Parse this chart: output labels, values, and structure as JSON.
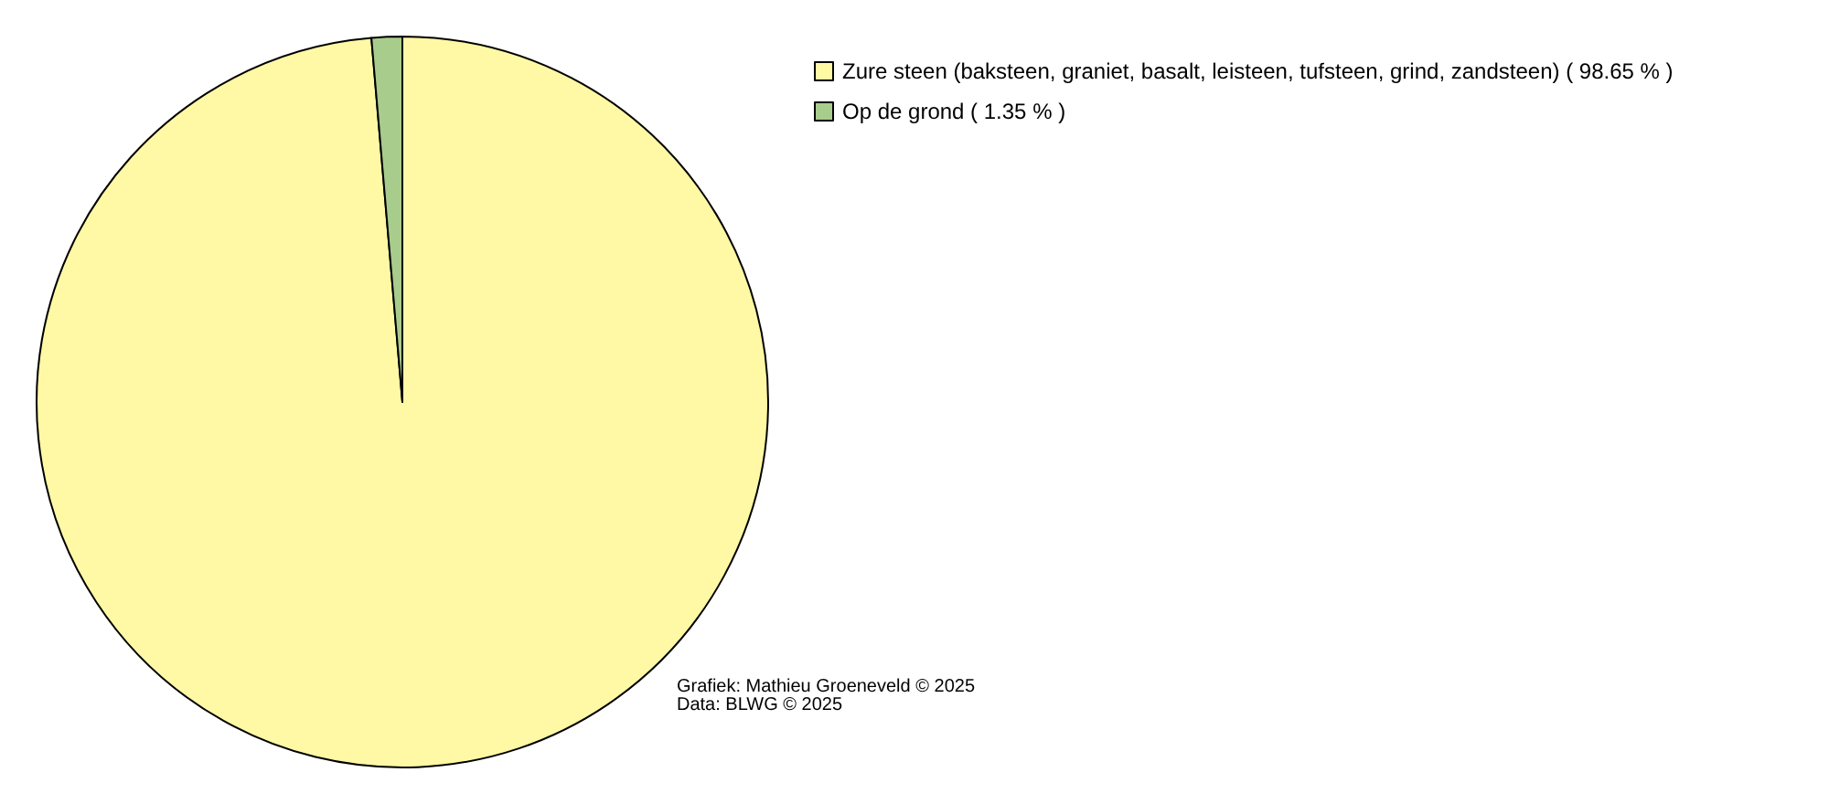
{
  "chart_data": {
    "type": "pie",
    "categories": [
      "Zure steen (baksteen, graniet, basalt, leisteen, tufsteen, grind, zandsteen) ( 98.65 % )",
      "Op de grond ( 1.35 % )"
    ],
    "values": [
      98.65,
      1.35
    ],
    "colors": [
      "#fff8a5",
      "#a8cc8c"
    ],
    "legend": "top right",
    "annotations": [
      "Grafiek: Mathieu Groeneveld © 2025",
      "Data: BLWG © 2025"
    ]
  }
}
